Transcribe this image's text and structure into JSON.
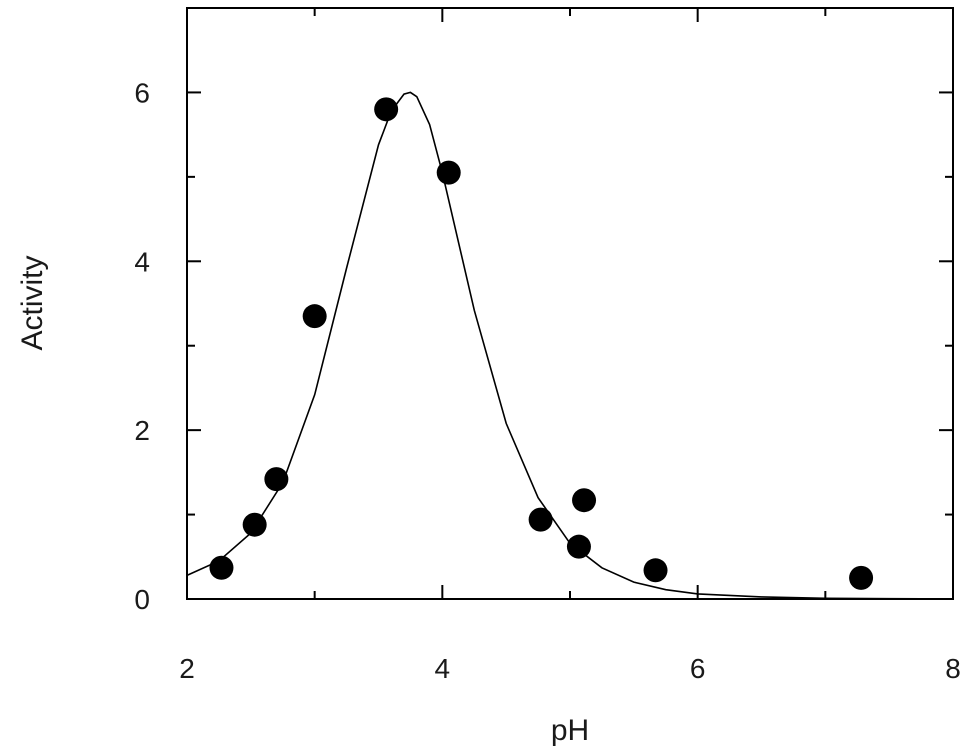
{
  "chart_data": {
    "type": "scatter",
    "title": "",
    "xlabel": "pH",
    "ylabel": "Activity",
    "xlim": [
      2,
      8
    ],
    "ylim": [
      0,
      7
    ],
    "x_major_ticks": [
      2,
      4,
      6,
      8
    ],
    "x_minor_ticks": [
      3,
      5,
      7
    ],
    "y_major_ticks": [
      0,
      2,
      4,
      6
    ],
    "y_minor_ticks": [
      1,
      3,
      5,
      7
    ],
    "x_tick_labels": [
      "2",
      "4",
      "6",
      "8"
    ],
    "y_tick_labels": [
      "0",
      "2",
      "4",
      "6"
    ],
    "grid": false,
    "legend": "none",
    "marker_color": "#000000",
    "line_color": "#000000",
    "series": [
      {
        "kind": "points",
        "x": [
          2.27,
          2.53,
          2.7,
          3.0,
          3.56,
          4.05,
          4.77,
          5.07,
          5.11,
          5.67,
          7.28
        ],
        "y": [
          0.37,
          0.88,
          1.42,
          3.35,
          5.8,
          5.05,
          0.94,
          0.62,
          1.17,
          0.34,
          0.25
        ]
      },
      {
        "kind": "fitted-curve",
        "x": [
          2.0,
          2.25,
          2.5,
          2.75,
          3.0,
          3.25,
          3.5,
          3.6,
          3.7,
          3.75,
          3.8,
          3.9,
          4.0,
          4.25,
          4.5,
          4.75,
          5.0,
          5.25,
          5.5,
          5.75,
          6.0,
          6.5,
          7.0,
          7.5,
          8.0
        ],
        "y": [
          0.28,
          0.45,
          0.78,
          1.38,
          2.42,
          3.92,
          5.38,
          5.78,
          5.98,
          6.0,
          5.95,
          5.62,
          5.05,
          3.42,
          2.08,
          1.2,
          0.66,
          0.37,
          0.2,
          0.11,
          0.06,
          0.025,
          0.008,
          0.003,
          0.001
        ]
      }
    ]
  }
}
